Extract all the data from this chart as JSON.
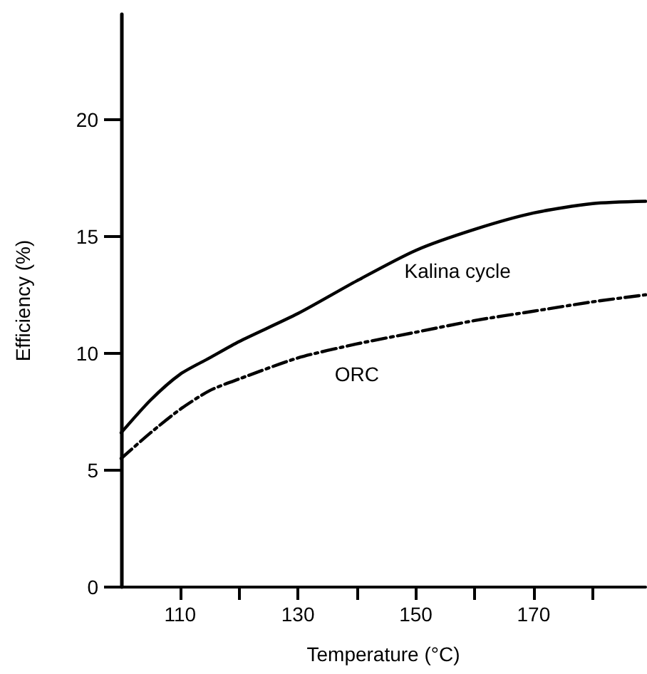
{
  "chart_data": {
    "type": "line",
    "xlabel": "Temperature (°C)",
    "ylabel": "Efficiency (%)",
    "x": [
      100,
      105,
      110,
      115,
      120,
      130,
      140,
      150,
      160,
      170,
      180,
      189
    ],
    "series": [
      {
        "name": "Kalina cycle",
        "color": "#000000",
        "line_style": "solid",
        "values": [
          6.6,
          8.0,
          9.1,
          9.8,
          10.5,
          11.7,
          13.1,
          14.4,
          15.3,
          16.0,
          16.4,
          16.5
        ]
      },
      {
        "name": "ORC",
        "color": "#000000",
        "line_style": "dashed",
        "values": [
          5.5,
          6.6,
          7.6,
          8.4,
          8.9,
          9.8,
          10.4,
          10.9,
          11.4,
          11.8,
          12.2,
          12.5
        ]
      }
    ],
    "xlim": [
      100,
      189
    ],
    "xticks": [
      110,
      {
        "value": 120,
        "label": null
      },
      130,
      {
        "value": 140,
        "label": null
      },
      150,
      {
        "value": 160,
        "label": null
      },
      170,
      {
        "value": 180,
        "label": null
      }
    ],
    "ylim": [
      0,
      24.5
    ],
    "yticks": [
      0,
      5,
      10,
      15,
      20
    ],
    "grid": false,
    "legend": false,
    "marker": "none"
  }
}
